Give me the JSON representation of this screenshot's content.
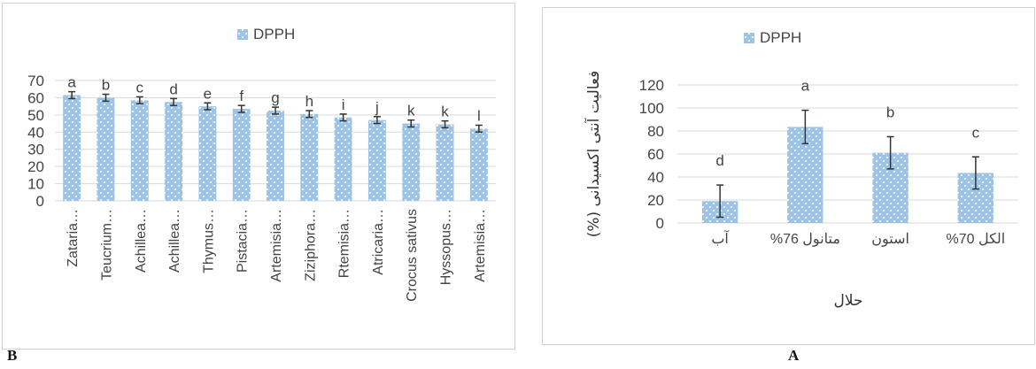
{
  "panels": {
    "left_label": "B",
    "right_label": "A"
  },
  "colors": {
    "bar": "#9dc3e6",
    "bar_dots": "#ffffff",
    "grid": "#d9d9d9",
    "text": "#444444"
  },
  "chart_data": [
    {
      "panel": "B",
      "type": "bar",
      "legend": [
        "DPPH"
      ],
      "legend_position": "top-center",
      "grid": true,
      "ylim": [
        0,
        70
      ],
      "yticks": [
        0,
        10,
        20,
        30,
        40,
        50,
        60,
        70
      ],
      "categories": [
        "Zataria…",
        "Teucrium…",
        "Achillea…",
        "Achillea…",
        "Thymus…",
        "Pistacia…",
        "Artemisia…",
        "Ziziphora…",
        "Rtemisia…",
        "Atricaria…",
        "Crocus sativus",
        "Hyssopus…",
        "Artemisia…"
      ],
      "series": [
        {
          "name": "DPPH",
          "values": [
            61.5,
            60,
            58.5,
            57.5,
            55,
            53.5,
            52.5,
            50.5,
            48.5,
            47,
            45,
            44.5,
            42
          ],
          "error": [
            2,
            2,
            2,
            2,
            2,
            2,
            2,
            2,
            2,
            2,
            2,
            2,
            2
          ],
          "labels": [
            "a",
            "b",
            "c",
            "d",
            "e",
            "f",
            "g",
            "h",
            "i",
            "j",
            "k",
            "k",
            "l"
          ]
        }
      ]
    },
    {
      "panel": "A",
      "type": "bar",
      "legend": [
        "DPPH"
      ],
      "legend_position": "top-center",
      "grid": true,
      "ylabel": "فعالیت آنتی اکسیدانی (%)",
      "xlabel": "حلال",
      "ylim": [
        0,
        120
      ],
      "yticks": [
        0,
        20,
        40,
        60,
        80,
        100,
        120
      ],
      "categories": [
        "آب",
        "متانول 76%",
        "استون",
        "الکل 70%"
      ],
      "series": [
        {
          "name": "DPPH",
          "values": [
            19,
            83.5,
            61,
            43.5
          ],
          "error": [
            14,
            14.5,
            14,
            14
          ],
          "labels": [
            "d",
            "a",
            "b",
            "c"
          ]
        }
      ]
    }
  ]
}
